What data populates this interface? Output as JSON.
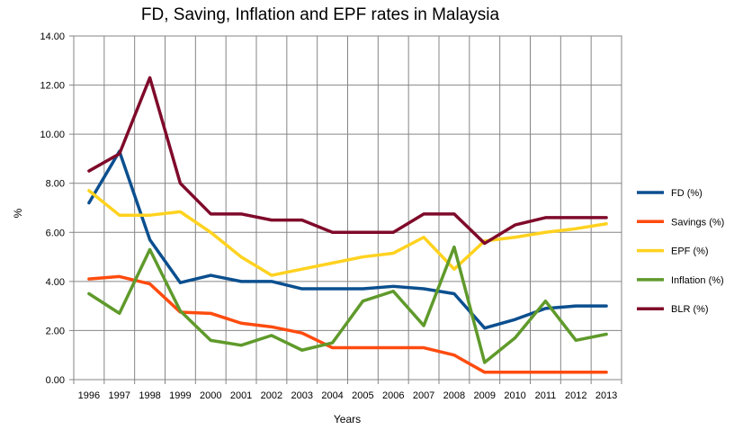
{
  "chart_data": {
    "type": "line",
    "title": "FD, Saving, Inflation and EPF rates in Malaysia",
    "xlabel": "Years",
    "ylabel": "%",
    "ylim": [
      0,
      14
    ],
    "y_ticks": [
      "0.00",
      "2.00",
      "4.00",
      "6.00",
      "8.00",
      "10.00",
      "12.00",
      "14.00"
    ],
    "grid": true,
    "legend_position": "right",
    "categories": [
      "1996",
      "1997",
      "1998",
      "1999",
      "2000",
      "2001",
      "2002",
      "2003",
      "2004",
      "2005",
      "2006",
      "2007",
      "2008",
      "2009",
      "2010",
      "2011",
      "2012",
      "2013"
    ],
    "series": [
      {
        "name": "FD (%)",
        "color": "#0b4f8f",
        "values": [
          7.2,
          9.3,
          5.7,
          3.95,
          4.25,
          4.0,
          4.0,
          3.7,
          3.7,
          3.7,
          3.8,
          3.7,
          3.5,
          2.1,
          2.45,
          2.9,
          3.0,
          3.0
        ]
      },
      {
        "name": "Savings (%)",
        "color": "#ff4b0f",
        "values": [
          4.1,
          4.2,
          3.9,
          2.75,
          2.7,
          2.3,
          2.15,
          1.9,
          1.3,
          1.3,
          1.3,
          1.3,
          1.0,
          0.3,
          0.3,
          0.3,
          0.3,
          0.3
        ]
      },
      {
        "name": "EPF (%)",
        "color": "#ffd21f",
        "values": [
          7.7,
          6.7,
          6.7,
          6.84,
          6.0,
          5.0,
          4.25,
          4.5,
          4.75,
          5.0,
          5.15,
          5.8,
          4.5,
          5.65,
          5.8,
          6.0,
          6.15,
          6.35
        ]
      },
      {
        "name": "Inflation (%)",
        "color": "#5f9a2b",
        "values": [
          3.5,
          2.7,
          5.3,
          2.8,
          1.6,
          1.4,
          1.8,
          1.2,
          1.5,
          3.2,
          3.6,
          2.2,
          5.4,
          0.7,
          1.7,
          3.2,
          1.6,
          1.85
        ]
      },
      {
        "name": "BLR (%)",
        "color": "#7f0a2a",
        "values": [
          8.5,
          9.2,
          12.3,
          8.0,
          6.75,
          6.75,
          6.5,
          6.5,
          6.0,
          6.0,
          6.0,
          6.75,
          6.75,
          5.55,
          6.3,
          6.6,
          6.6,
          6.6
        ]
      }
    ]
  }
}
